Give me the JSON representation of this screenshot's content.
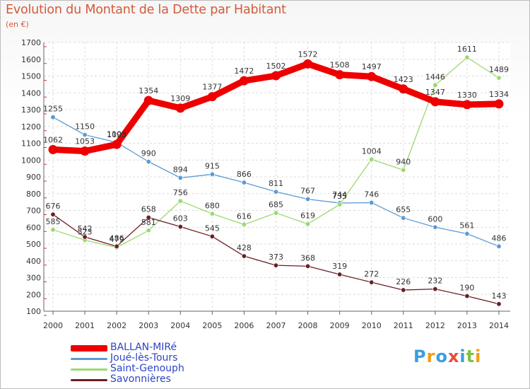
{
  "title": "Evolution du Montant de la Dette par Habitant",
  "unit_label": "(en €)",
  "logo": {
    "parts": [
      {
        "text": "P",
        "color": "#3a9fdc"
      },
      {
        "text": "r",
        "color": "#f39c12"
      },
      {
        "text": "o",
        "color": "#3a9fdc"
      },
      {
        "text": "x",
        "color": "#e74c3c"
      },
      {
        "text": "i",
        "color": "#3a9fdc"
      },
      {
        "text": "t",
        "color": "#7dc242"
      },
      {
        "text": "i",
        "color": "#f39c12"
      }
    ]
  },
  "chart_data": {
    "type": "line",
    "x": [
      "2000",
      "2001",
      "2002",
      "2003",
      "2004",
      "2005",
      "2006",
      "2007",
      "2008",
      "2009",
      "2010",
      "2011",
      "2012",
      "2013",
      "2014"
    ],
    "ylim": [
      100,
      1700
    ],
    "yticks": [
      "100",
      "200",
      "300",
      "400",
      "500",
      "600",
      "700",
      "800",
      "900",
      "1000",
      "1100",
      "1200",
      "1300",
      "1400",
      "1500",
      "1600",
      "1700"
    ],
    "grid": true,
    "legend_position": "bottom-left",
    "series": [
      {
        "name": "BALLAN-MIRé",
        "color": "#ee0000",
        "emphasis": true,
        "values": [
          1062,
          1053,
          1093,
          1354,
          1309,
          1377,
          1472,
          1502,
          1572,
          1508,
          1497,
          1423,
          1347,
          1330,
          1334
        ],
        "labels": [
          "1062",
          "1053",
          "1093",
          "1354",
          "1309",
          "1377",
          "1472",
          "1502",
          "1572",
          "1508",
          "1497",
          "1423",
          "1347",
          "1330",
          "1334"
        ]
      },
      {
        "name": "Joué-lès-Tours",
        "color": "#5b9bd5",
        "values": [
          1255,
          1150,
          1105,
          990,
          894,
          915,
          866,
          811,
          767,
          744,
          746,
          655,
          600,
          561,
          486
        ],
        "labels": [
          "1255",
          "1150",
          "1105",
          "990",
          "894",
          "915",
          "866",
          "811",
          "767",
          "744",
          "746",
          "655",
          "600",
          "561",
          "486"
        ]
      },
      {
        "name": "Saint-Genouph",
        "color": "#9ad96e",
        "values": [
          585,
          523,
          479,
          581,
          756,
          680,
          616,
          685,
          619,
          735,
          1004,
          940,
          1446,
          1611,
          1489
        ],
        "labels": [
          "585",
          "523",
          "479",
          "581",
          "756",
          "680",
          "616",
          "685",
          "619",
          "735",
          "1004",
          "940",
          "1446",
          "1611",
          "1489"
        ]
      },
      {
        "name": "Savonnières",
        "color": "#6b1f23",
        "values": [
          676,
          542,
          486,
          658,
          603,
          545,
          428,
          373,
          368,
          319,
          272,
          226,
          232,
          190,
          143
        ],
        "labels": [
          "676",
          "542",
          "486",
          "658",
          "603",
          "545",
          "428",
          "373",
          "368",
          "319",
          "272",
          "226",
          "232",
          "190",
          "143"
        ]
      }
    ]
  }
}
